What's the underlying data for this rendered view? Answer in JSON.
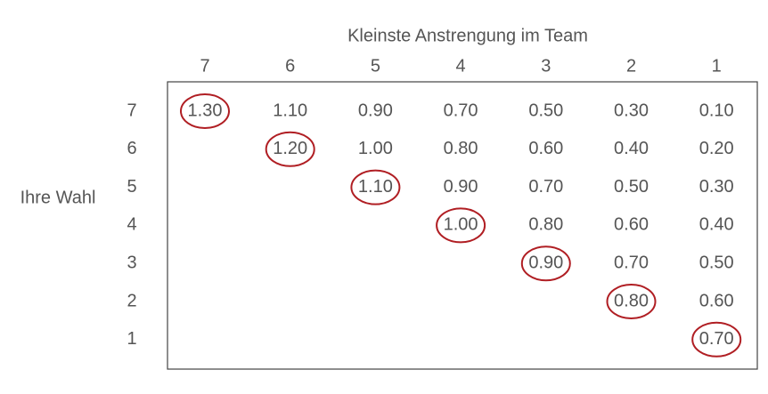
{
  "table": {
    "title": "Kleinste Anstrengung im Team",
    "row_header": "Ihre Wahl",
    "columns": [
      "7",
      "6",
      "5",
      "4",
      "3",
      "2",
      "1"
    ],
    "rows": [
      {
        "label": "7",
        "cells": [
          "1.30",
          "1.10",
          "0.90",
          "0.70",
          "0.50",
          "0.30",
          "0.10"
        ]
      },
      {
        "label": "6",
        "cells": [
          "1.20",
          "1.00",
          "0.80",
          "0.60",
          "0.40",
          "0.20"
        ]
      },
      {
        "label": "5",
        "cells": [
          "1.10",
          "0.90",
          "0.70",
          "0.50",
          "0.30"
        ]
      },
      {
        "label": "4",
        "cells": [
          "1.00",
          "0.80",
          "0.60",
          "0.40"
        ]
      },
      {
        "label": "3",
        "cells": [
          "0.90",
          "0.70",
          "0.50"
        ]
      },
      {
        "label": "2",
        "cells": [
          "0.80",
          "0.60"
        ]
      },
      {
        "label": "1",
        "cells": [
          "0.70"
        ]
      }
    ]
  }
}
